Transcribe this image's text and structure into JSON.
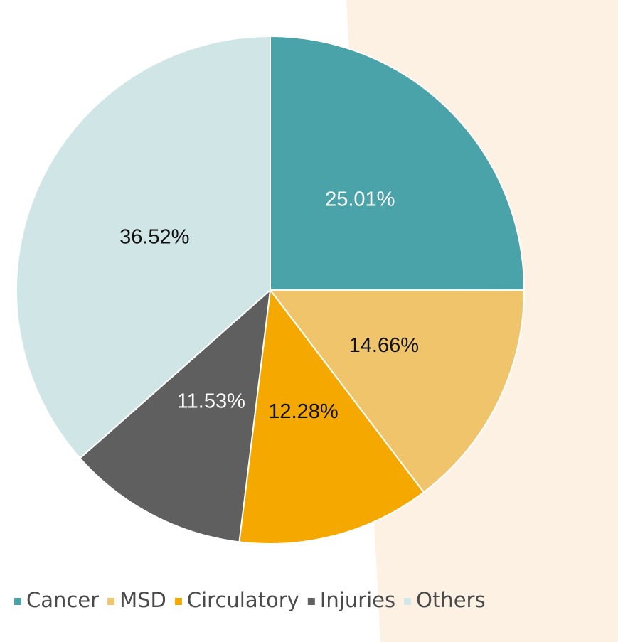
{
  "chart_data": {
    "type": "pie",
    "categories": [
      "Cancer",
      "MSD",
      "Circulatory",
      "Injuries",
      "Others"
    ],
    "values": [
      25.01,
      14.66,
      12.28,
      11.53,
      36.52
    ],
    "value_labels": [
      "25.01%",
      "14.66%",
      "12.28%",
      "11.53%",
      "36.52%"
    ],
    "colors": [
      "#4aa3a8",
      "#f0c46a",
      "#f5a800",
      "#5f5f5f",
      "#cfe5e6"
    ],
    "label_colors": [
      "#ffffff",
      "#111111",
      "#111111",
      "#ffffff",
      "#111111"
    ],
    "legend": "bottom"
  }
}
